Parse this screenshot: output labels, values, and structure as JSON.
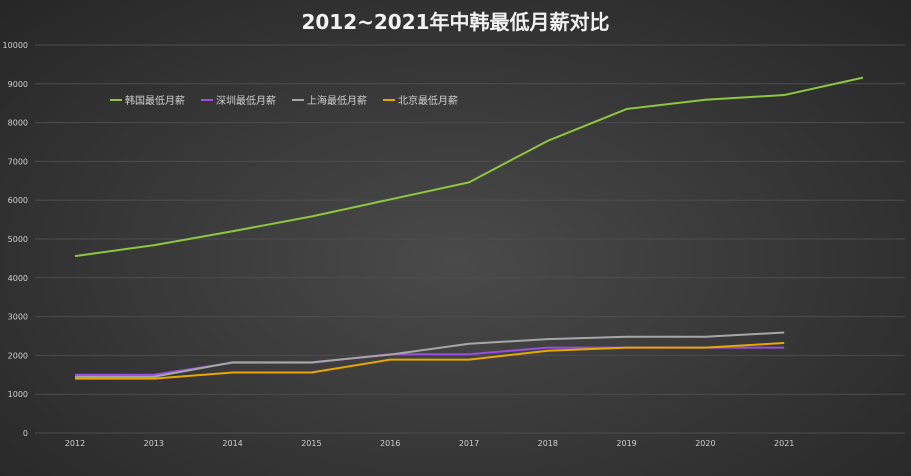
{
  "chart_data": {
    "type": "line",
    "title": "2012~2021年中韩最低月薪对比",
    "xlabel": "",
    "ylabel": "",
    "categories": [
      "2012",
      "2013",
      "2014",
      "2015",
      "2016",
      "2017",
      "2018",
      "2019",
      "2020",
      "2021",
      ""
    ],
    "ylim": [
      0,
      10000
    ],
    "yticks": [
      0,
      1000,
      2000,
      3000,
      4000,
      5000,
      6000,
      7000,
      8000,
      9000,
      10000
    ],
    "grid": true,
    "legend": "top-left",
    "series": [
      {
        "name": "韩国最低月薪",
        "color": "#8dc63f",
        "values": [
          4560,
          4840,
          5200,
          5580,
          6020,
          6460,
          7530,
          8350,
          8590,
          8710,
          9160
        ]
      },
      {
        "name": "深圳最低月薪",
        "color": "#9b4dde",
        "values": [
          1500,
          1500,
          1810,
          1810,
          2030,
          2030,
          2200,
          2200,
          2200,
          2200,
          null
        ]
      },
      {
        "name": "上海最低月薪",
        "color": "#a6a6a6",
        "values": [
          1450,
          1450,
          1820,
          1820,
          2020,
          2300,
          2420,
          2480,
          2480,
          2590,
          null
        ]
      },
      {
        "name": "北京最低月薪",
        "color": "#e6a800",
        "values": [
          1400,
          1400,
          1560,
          1560,
          1890,
          1890,
          2120,
          2200,
          2200,
          2320,
          null
        ]
      }
    ]
  }
}
